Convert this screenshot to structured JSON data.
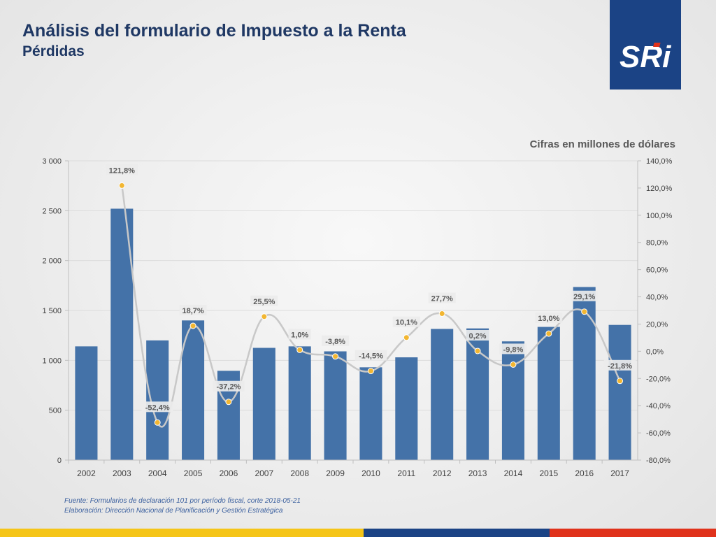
{
  "header": {
    "title": "Análisis del formulario de Impuesto a la Renta",
    "subtitle": "Pérdidas"
  },
  "logo": {
    "text": "SRi",
    "bg_color": "#1b4385"
  },
  "units_note": "Cifras en millones de dólares",
  "footer": {
    "source": "Fuente: Formularios de declaración 101 por período fiscal, corte 2018-05-21",
    "elaboration": "Elaboración: Dirección Nacional de Planificación y Gestión Estratégica"
  },
  "chart_data": {
    "type": "bar",
    "title": "",
    "xlabel": "",
    "ylabel": "",
    "categories": [
      "2002",
      "2003",
      "2004",
      "2005",
      "2006",
      "2007",
      "2008",
      "2009",
      "2010",
      "2011",
      "2012",
      "2013",
      "2014",
      "2015",
      "2016",
      "2017"
    ],
    "series": [
      {
        "type": "bar",
        "axis": "left",
        "color": "#4472a8",
        "values": [
          1140,
          2520,
          1200,
          1400,
          895,
          1125,
          1140,
          1090,
          930,
          1030,
          1315,
          1320,
          1190,
          1335,
          1735,
          1355
        ]
      },
      {
        "type": "line",
        "axis": "right",
        "line_color": "#c8c8c8",
        "marker_color": "#f2b632",
        "values": [
          null,
          121.8,
          -52.4,
          18.7,
          -37.2,
          25.5,
          1.0,
          -3.8,
          -14.5,
          10.1,
          27.7,
          0.2,
          -9.8,
          13.0,
          29.1,
          -21.8
        ],
        "labels": [
          null,
          "121,8%",
          "-52,4%",
          "18,7%",
          "-37,2%",
          "25,5%",
          "1,0%",
          "-3,8%",
          "-14,5%",
          "10,1%",
          "27,7%",
          "0,2%",
          "-9,8%",
          "13,0%",
          "29,1%",
          "-21,8%"
        ]
      }
    ],
    "y_left": {
      "range": [
        0,
        3000
      ],
      "ticks": [
        0,
        500,
        1000,
        1500,
        2000,
        2500,
        3000
      ],
      "tick_labels": [
        "0",
        "500",
        "1 000",
        "1 500",
        "2 000",
        "2 500",
        "3 000"
      ]
    },
    "y_right": {
      "range": [
        -80,
        140
      ],
      "ticks": [
        -80,
        -60,
        -40,
        -20,
        0,
        20,
        40,
        60,
        80,
        100,
        120,
        140
      ],
      "tick_labels": [
        "-80,0%",
        "-60,0%",
        "-40,0%",
        "-20,0%",
        "0,0%",
        "20,0%",
        "40,0%",
        "60,0%",
        "80,0%",
        "100,0%",
        "120,0%",
        "140,0%"
      ]
    },
    "grid": true,
    "legend": "none"
  }
}
